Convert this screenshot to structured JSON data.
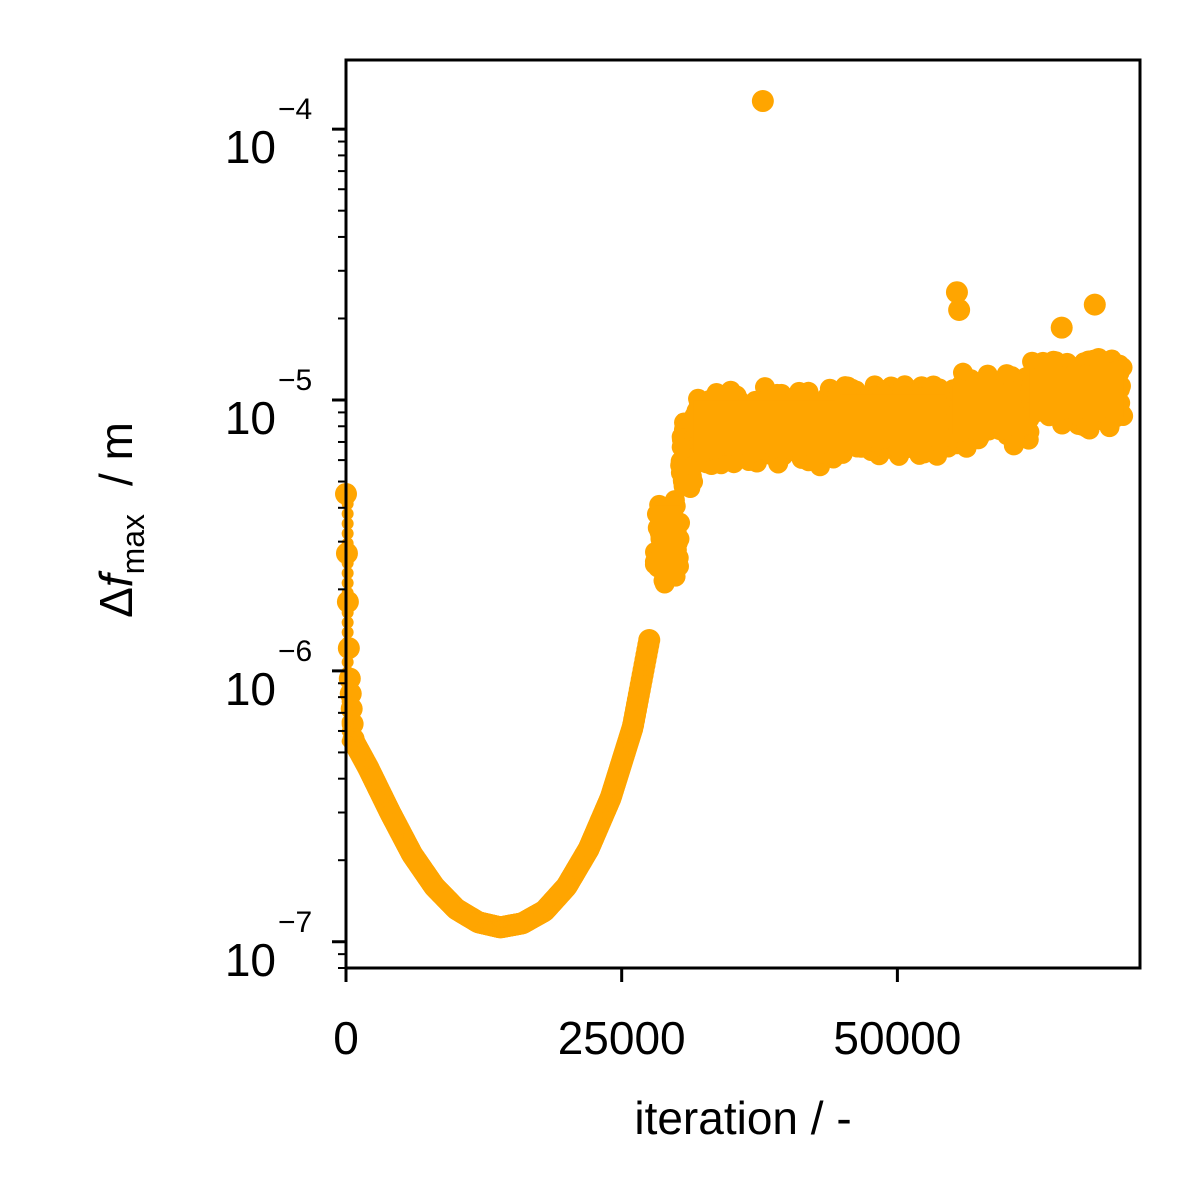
{
  "chart_data": {
    "type": "scatter",
    "xlabel": "iteration / -",
    "ylabel": {
      "symbol": "Δ",
      "variable": "f",
      "subscript": "max",
      "unit": "/ m"
    },
    "xlim": [
      0,
      72000
    ],
    "ylim": [
      8e-08,
      0.00018
    ],
    "yscale": "log",
    "grid": false,
    "marker_color": "#FFA500",
    "x_ticks": [
      {
        "value": 0,
        "label": "0"
      },
      {
        "value": 25000,
        "label": "25000"
      },
      {
        "value": 50000,
        "label": "50000"
      }
    ],
    "y_ticks": [
      {
        "value": 1e-07,
        "base": "10",
        "exp": "−7"
      },
      {
        "value": 1e-06,
        "base": "10",
        "exp": "−6"
      },
      {
        "value": 1e-05,
        "base": "10",
        "exp": "−5"
      },
      {
        "value": 0.0001,
        "base": "10",
        "exp": "−4"
      }
    ],
    "trend": [
      {
        "x": 0,
        "y": 4.5e-06
      },
      {
        "x": 100,
        "y": 2.5e-06
      },
      {
        "x": 300,
        "y": 1e-06
      },
      {
        "x": 700,
        "y": 5.5e-07
      },
      {
        "x": 2000,
        "y": 4.4e-07
      },
      {
        "x": 4000,
        "y": 3e-07
      },
      {
        "x": 6000,
        "y": 2.1e-07
      },
      {
        "x": 8000,
        "y": 1.6e-07
      },
      {
        "x": 10000,
        "y": 1.32e-07
      },
      {
        "x": 12000,
        "y": 1.18e-07
      },
      {
        "x": 14000,
        "y": 1.13e-07
      },
      {
        "x": 16000,
        "y": 1.17e-07
      },
      {
        "x": 18000,
        "y": 1.3e-07
      },
      {
        "x": 20000,
        "y": 1.6e-07
      },
      {
        "x": 22000,
        "y": 2.2e-07
      },
      {
        "x": 24000,
        "y": 3.4e-07
      },
      {
        "x": 26000,
        "y": 6.2e-07
      },
      {
        "x": 27500,
        "y": 1.3e-06
      }
    ],
    "bands": [
      {
        "x_range": [
          28000,
          30300
        ],
        "y_low": 1.8e-06,
        "y_high": 5e-06
      },
      {
        "x_range": [
          30300,
          31500
        ],
        "y_low": 4.5e-06,
        "y_high": 9e-06
      },
      {
        "x_range": [
          31500,
          45000
        ],
        "y_low": 5.5e-06,
        "y_high": 1.15e-05
      },
      {
        "x_range": [
          45000,
          55000
        ],
        "y_low": 6e-06,
        "y_high": 1.2e-05
      },
      {
        "x_range": [
          55000,
          62000
        ],
        "y_low": 6.5e-06,
        "y_high": 1.3e-05
      },
      {
        "x_range": [
          62000,
          70500
        ],
        "y_low": 7.5e-06,
        "y_high": 1.5e-05
      }
    ],
    "outliers": [
      {
        "x": 37800,
        "y": 0.000127
      },
      {
        "x": 55400,
        "y": 2.5e-05
      },
      {
        "x": 55600,
        "y": 2.15e-05
      },
      {
        "x": 64900,
        "y": 1.85e-05
      },
      {
        "x": 67900,
        "y": 2.25e-05
      }
    ]
  }
}
